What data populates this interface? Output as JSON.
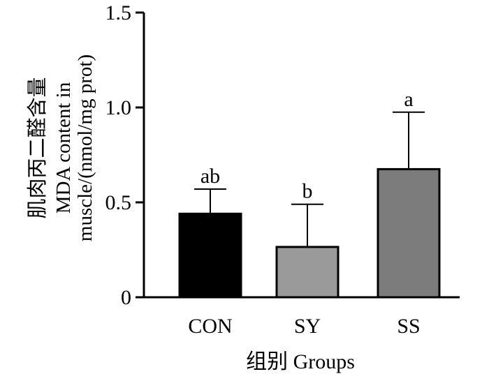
{
  "chart_data": {
    "type": "bar",
    "categories": [
      "CON",
      "SY",
      "SS"
    ],
    "values": [
      0.44,
      0.265,
      0.675
    ],
    "errors": [
      0.13,
      0.225,
      0.3
    ],
    "significance": [
      "ab",
      "b",
      "a"
    ],
    "bar_colors": [
      "#000000",
      "#9a9a9a",
      "#7b7b7b"
    ],
    "ylim": [
      0,
      1.5
    ],
    "yticks": [
      0,
      0.5,
      1.0,
      1.5
    ],
    "ytick_labels": [
      "0",
      "0.5",
      "1.0",
      "1.5"
    ],
    "xlabel": "组别 Groups",
    "ylabel_lines": [
      "肌肉丙二醛含量",
      "MDA content in",
      "muscle/(nmol/mg prot)"
    ],
    "title": ""
  }
}
